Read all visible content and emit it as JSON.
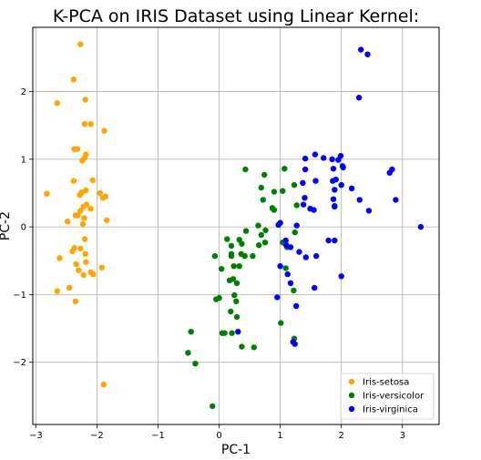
{
  "chart_data": {
    "type": "scatter",
    "title": "K-PCA on IRIS Dataset using Linear Kernel:",
    "xlabel": "PC-1",
    "ylabel": "PC-2",
    "xlim": [
      -3.05,
      3.6
    ],
    "ylim": [
      -2.92,
      2.95
    ],
    "xticks": [
      -3,
      -2,
      -1,
      0,
      1,
      2,
      3
    ],
    "yticks": [
      -2,
      -1,
      0,
      1,
      2
    ],
    "xtick_labels": [
      "−3",
      "−2",
      "−1",
      "0",
      "1",
      "2",
      "3"
    ],
    "ytick_labels": [
      "−2",
      "−1",
      "0",
      "1",
      "2"
    ],
    "grid": true,
    "legend_position": "lower-right",
    "series": [
      {
        "name": "Iris-setosa",
        "color": "#FFA500",
        "points": [
          [
            -2.27,
            2.7
          ],
          [
            -2.38,
            2.18
          ],
          [
            -2.65,
            1.83
          ],
          [
            -2.19,
            1.88
          ],
          [
            -2.2,
            1.52
          ],
          [
            -2.1,
            1.52
          ],
          [
            -1.88,
            1.42
          ],
          [
            -2.37,
            1.15
          ],
          [
            -2.32,
            1.15
          ],
          [
            -2.18,
            1.07
          ],
          [
            -2.2,
            1.02
          ],
          [
            -2.24,
            0.98
          ],
          [
            -2.38,
            0.68
          ],
          [
            -2.07,
            0.69
          ],
          [
            -2.18,
            0.54
          ],
          [
            -1.95,
            0.5
          ],
          [
            -2.25,
            0.51
          ],
          [
            -2.28,
            0.47
          ],
          [
            -2.82,
            0.49
          ],
          [
            -1.86,
            0.45
          ],
          [
            -1.9,
            0.43
          ],
          [
            -2.17,
            0.33
          ],
          [
            -2.22,
            0.3
          ],
          [
            -2.1,
            0.27
          ],
          [
            -2.27,
            0.24
          ],
          [
            -2.31,
            0.17
          ],
          [
            -2.35,
            0.17
          ],
          [
            -2.21,
            0.13
          ],
          [
            -2.48,
            0.08
          ],
          [
            -1.84,
            0.1
          ],
          [
            -2.23,
            0.04
          ],
          [
            -2.2,
            -0.18
          ],
          [
            -2.37,
            -0.31
          ],
          [
            -2.4,
            -0.36
          ],
          [
            -2.27,
            -0.32
          ],
          [
            -2.19,
            -0.4
          ],
          [
            -2.61,
            -0.46
          ],
          [
            -2.34,
            -0.55
          ],
          [
            -2.18,
            -0.52
          ],
          [
            -1.92,
            -0.6
          ],
          [
            -2.3,
            -0.64
          ],
          [
            -2.1,
            -0.67
          ],
          [
            -2.06,
            -0.7
          ],
          [
            -2.22,
            -0.71
          ],
          [
            -2.45,
            -0.9
          ],
          [
            -2.65,
            -0.95
          ],
          [
            -2.35,
            -1.1
          ],
          [
            -1.89,
            -2.33
          ]
        ]
      },
      {
        "name": "Iris-versicolor",
        "color": "#008000",
        "points": [
          [
            0.43,
            0.85
          ],
          [
            0.74,
            0.77
          ],
          [
            1.07,
            0.86
          ],
          [
            0.9,
            0.52
          ],
          [
            0.69,
            0.58
          ],
          [
            0.72,
            0.4
          ],
          [
            1.04,
            0.53
          ],
          [
            1.23,
            0.62
          ],
          [
            1.27,
            0.32
          ],
          [
            0.87,
            0.28
          ],
          [
            0.9,
            0.25
          ],
          [
            0.64,
            0.02
          ],
          [
            0.76,
            -0.05
          ],
          [
            0.44,
            -0.06
          ],
          [
            0.69,
            -0.12
          ],
          [
            0.33,
            -0.19
          ],
          [
            0.13,
            -0.18
          ],
          [
            0.2,
            -0.28
          ],
          [
            0.37,
            -0.25
          ],
          [
            0.75,
            -0.23
          ],
          [
            0.65,
            -0.27
          ],
          [
            -0.07,
            -0.43
          ],
          [
            0.36,
            -0.4
          ],
          [
            0.42,
            -0.43
          ],
          [
            0.2,
            -0.4
          ],
          [
            0.24,
            -0.58
          ],
          [
            0.55,
            -0.43
          ],
          [
            1.04,
            -0.23
          ],
          [
            1.11,
            -0.3
          ],
          [
            1.24,
            -0.08
          ],
          [
            0.33,
            -0.58
          ],
          [
            0.04,
            -0.62
          ],
          [
            0.17,
            -0.79
          ],
          [
            0.23,
            -0.77
          ],
          [
            0.29,
            -0.83
          ],
          [
            1.09,
            -0.61
          ],
          [
            1.22,
            -0.94
          ],
          [
            0.25,
            -1.01
          ],
          [
            0.0,
            -1.05
          ],
          [
            -0.05,
            -1.07
          ],
          [
            0.28,
            -1.1
          ],
          [
            0.19,
            -1.25
          ],
          [
            0.29,
            -1.33
          ],
          [
            1.01,
            -1.42
          ],
          [
            0.09,
            -1.57
          ],
          [
            0.21,
            -1.57
          ],
          [
            -0.46,
            -1.55
          ],
          [
            1.23,
            -1.65
          ],
          [
            0.37,
            -1.77
          ],
          [
            0.57,
            -1.78
          ],
          [
            -0.51,
            -1.86
          ],
          [
            -0.39,
            -2.02
          ],
          [
            -0.11,
            -2.65
          ],
          [
            0.05,
            -1.57
          ],
          [
            0.2,
            -0.43
          ]
        ]
      },
      {
        "name": "Iris-virginica",
        "color": "#0000FF",
        "points": [
          [
            2.32,
            2.62
          ],
          [
            2.43,
            2.55
          ],
          [
            2.29,
            1.91
          ],
          [
            1.99,
            1.05
          ],
          [
            1.95,
            0.99
          ],
          [
            1.57,
            1.07
          ],
          [
            1.71,
            1.02
          ],
          [
            1.85,
            1.0
          ],
          [
            1.41,
            1.01
          ],
          [
            2.02,
            0.9
          ],
          [
            2.03,
            0.88
          ],
          [
            1.87,
            0.86
          ],
          [
            1.41,
            0.85
          ],
          [
            1.91,
            0.7
          ],
          [
            1.86,
            0.68
          ],
          [
            1.58,
            0.68
          ],
          [
            1.37,
            0.65
          ],
          [
            2.0,
            0.62
          ],
          [
            1.89,
            0.55
          ],
          [
            2.17,
            0.57
          ],
          [
            2.79,
            0.8
          ],
          [
            2.83,
            0.85
          ],
          [
            1.87,
            0.41
          ],
          [
            1.4,
            0.43
          ],
          [
            2.3,
            0.4
          ],
          [
            2.89,
            0.4
          ],
          [
            1.38,
            0.33
          ],
          [
            1.89,
            0.3
          ],
          [
            1.55,
            0.25
          ],
          [
            2.45,
            0.24
          ],
          [
            1.49,
            0.27
          ],
          [
            1.89,
            0.31
          ],
          [
            1.0,
            0.06
          ],
          [
            0.97,
            0.03
          ],
          [
            1.27,
            0.02
          ],
          [
            3.3,
            0.0
          ],
          [
            1.89,
            -0.2
          ],
          [
            1.79,
            -0.2
          ],
          [
            1.09,
            -0.2
          ],
          [
            1.1,
            -0.27
          ],
          [
            1.17,
            -0.3
          ],
          [
            1.31,
            -0.37
          ],
          [
            1.59,
            -0.43
          ],
          [
            1.42,
            -0.45
          ],
          [
            1.0,
            -0.58
          ],
          [
            1.12,
            -0.7
          ],
          [
            1.17,
            -0.83
          ],
          [
            1.56,
            -0.9
          ],
          [
            2.0,
            -0.73
          ],
          [
            1.26,
            -1.17
          ],
          [
            0.95,
            -1.04
          ],
          [
            0.31,
            -1.55
          ],
          [
            1.21,
            -1.7
          ],
          [
            1.24,
            -1.73
          ]
        ]
      }
    ]
  }
}
